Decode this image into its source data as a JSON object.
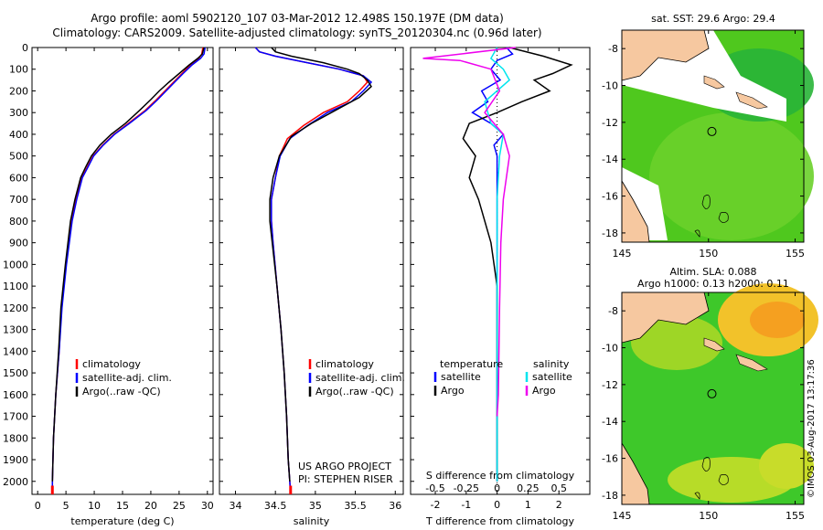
{
  "header": {
    "line1": "Argo profile: aoml 5902120_107 03-Mar-2012 12.498S 150.197E (DM data)",
    "line2": "Climatology: CARS2009. Satellite-adjusted climatology: synTS_20120304.nc (0.96d later)"
  },
  "chart_data": [
    {
      "type": "line",
      "id": "temperature",
      "xlabel": "temperature (deg C)",
      "xlim": [
        -1,
        31
      ],
      "ylim": [
        2060,
        0
      ],
      "xticks": [
        0,
        5,
        10,
        15,
        20,
        25,
        30
      ],
      "yticks": [
        0,
        100,
        200,
        300,
        400,
        500,
        600,
        700,
        800,
        900,
        1000,
        1100,
        1200,
        1300,
        1400,
        1500,
        1600,
        1700,
        1800,
        1900,
        2000
      ],
      "legend": [
        "climatology",
        "satellite-adj. clim.",
        "Argo(..raw -QC)"
      ],
      "series": [
        {
          "name": "climatology",
          "color": "#ff0000",
          "x": [
            29.2,
            29,
            28.5,
            27,
            25.5,
            24,
            22.5,
            21,
            19,
            16,
            13.5,
            11.5,
            9.8,
            8.8,
            7.8,
            6.8,
            6,
            5,
            4.2,
            3.8,
            3.2,
            2.8,
            2.6,
            2.6
          ],
          "y": [
            0,
            30,
            50,
            80,
            120,
            160,
            200,
            240,
            290,
            350,
            400,
            450,
            500,
            550,
            600,
            700,
            800,
            1000,
            1200,
            1400,
            1600,
            1800,
            2000,
            2060
          ]
        },
        {
          "name": "satellite-adj. clim.",
          "color": "#0000ff",
          "x": [
            29.6,
            29.4,
            28.8,
            27.3,
            25.7,
            24.2,
            22.7,
            21.2,
            19.2,
            16.2,
            13.6,
            11.6,
            9.9,
            8.9,
            7.9,
            6.9,
            6.1,
            5.1,
            4.3,
            3.8,
            3.2,
            2.8,
            2.6,
            2.6
          ],
          "y": [
            0,
            30,
            50,
            80,
            120,
            160,
            200,
            240,
            290,
            350,
            400,
            450,
            500,
            550,
            600,
            700,
            800,
            1000,
            1200,
            1400,
            1600,
            1800,
            2000,
            2060
          ]
        },
        {
          "name": "Argo(..raw -QC)",
          "color": "#000000",
          "x": [
            29.4,
            29.1,
            28.3,
            26.8,
            25,
            23.2,
            21.5,
            20,
            18,
            15.5,
            13,
            11,
            9.5,
            8.5,
            7.6,
            6.6,
            5.8,
            4.9,
            4.1,
            3.7,
            3.2,
            2.8,
            2.6
          ],
          "y": [
            0,
            30,
            50,
            80,
            120,
            160,
            200,
            240,
            290,
            350,
            400,
            450,
            500,
            550,
            600,
            700,
            800,
            1000,
            1200,
            1400,
            1600,
            1800,
            2000
          ]
        }
      ]
    },
    {
      "type": "line",
      "id": "salinity",
      "xlabel": "salinity",
      "xlim": [
        33.8,
        36.1
      ],
      "ylim": [
        2060,
        0
      ],
      "xticks": [
        34,
        34.5,
        35,
        35.5,
        36
      ],
      "legend": [
        "climatology",
        "satellite-adj. clim.",
        "Argo(..raw -QC)"
      ],
      "annotation": [
        "US ARGO PROJECT",
        "PI: STEPHEN RISER"
      ],
      "series": [
        {
          "name": "climatology",
          "color": "#ff0000",
          "x": [
            34.25,
            34.3,
            34.5,
            34.9,
            35.3,
            35.6,
            35.65,
            35.55,
            35.4,
            35.1,
            34.85,
            34.65,
            34.55,
            34.5,
            34.45,
            34.45,
            34.47,
            34.52,
            34.57,
            34.61,
            34.64,
            34.66,
            34.68,
            34.69
          ],
          "y": [
            0,
            20,
            40,
            70,
            100,
            130,
            160,
            200,
            250,
            300,
            360,
            420,
            500,
            600,
            700,
            800,
            900,
            1100,
            1300,
            1500,
            1700,
            1900,
            2000,
            2060
          ]
        },
        {
          "name": "satellite-adj. clim.",
          "color": "#0000ff",
          "x": [
            34.25,
            34.3,
            34.5,
            34.9,
            35.3,
            35.6,
            35.7,
            35.6,
            35.45,
            35.15,
            34.9,
            34.68,
            34.56,
            34.5,
            34.45,
            34.45,
            34.47,
            34.52,
            34.57,
            34.61,
            34.64,
            34.66,
            34.68,
            34.69
          ],
          "y": [
            0,
            20,
            40,
            70,
            100,
            130,
            160,
            200,
            250,
            300,
            360,
            420,
            500,
            600,
            700,
            800,
            900,
            1100,
            1300,
            1500,
            1700,
            1900,
            2000,
            2060
          ]
        },
        {
          "name": "Argo(..raw -QC)",
          "color": "#000000",
          "x": [
            34.45,
            34.5,
            34.7,
            35.1,
            35.4,
            35.55,
            35.65,
            35.7,
            35.55,
            35.25,
            34.95,
            34.7,
            34.55,
            34.47,
            34.43,
            34.43,
            34.46,
            34.52,
            34.57,
            34.61,
            34.64,
            34.66,
            34.68
          ],
          "y": [
            0,
            20,
            40,
            70,
            100,
            120,
            150,
            180,
            230,
            290,
            350,
            410,
            500,
            600,
            700,
            800,
            900,
            1100,
            1300,
            1500,
            1700,
            1900,
            2000
          ]
        }
      ]
    },
    {
      "type": "line",
      "id": "differences",
      "xlabel": "T difference from climatology",
      "xlabel_top": "S difference from climatology",
      "xlim_T": [
        -2.8,
        3.0
      ],
      "xlim_S": [
        -0.7,
        0.75
      ],
      "ylim": [
        2060,
        0
      ],
      "xticks_T": [
        -2,
        -1,
        0,
        1,
        2
      ],
      "xticks_S": [
        -0.5,
        -0.25,
        0,
        0.25,
        0.5
      ],
      "xticklabels_S": [
        "-0.5",
        "-0.25",
        "0",
        "0.25",
        "0.5"
      ],
      "legend_T": {
        "title": "temperature",
        "entries": [
          "satellite",
          "Argo"
        ]
      },
      "legend_S": {
        "title": "salinity",
        "entries": [
          "satellite",
          "Argo"
        ]
      },
      "series": [
        {
          "name": "T satellite",
          "axis": "T",
          "color": "#0000ff",
          "x": [
            0.3,
            0.5,
            0,
            -0.2,
            0.1,
            -0.5,
            -0.3,
            -0.8,
            -0.2,
            0.2,
            -0.1,
            0,
            0,
            0,
            0,
            0,
            0
          ],
          "y": [
            0,
            30,
            60,
            100,
            150,
            200,
            250,
            300,
            350,
            400,
            450,
            500,
            600,
            800,
            1100,
            1500,
            2000
          ]
        },
        {
          "name": "T Argo",
          "axis": "T",
          "color": "#000000",
          "x": [
            0.4,
            1.5,
            2.4,
            1.8,
            1.2,
            1.7,
            0.8,
            0,
            -0.9,
            -1.1,
            -0.7,
            -0.9,
            -0.6,
            -0.2,
            0,
            0,
            0
          ],
          "y": [
            0,
            40,
            80,
            120,
            150,
            200,
            250,
            300,
            350,
            420,
            500,
            600,
            700,
            900,
            1100,
            1500,
            2000
          ]
        },
        {
          "name": "S satellite",
          "axis": "S",
          "color": "#00e5ee",
          "x": [
            0,
            -0.05,
            0.05,
            0.1,
            -0.1,
            -0.05,
            0.05,
            0.02,
            0,
            0,
            0,
            0
          ],
          "y": [
            0,
            50,
            100,
            150,
            250,
            350,
            400,
            500,
            700,
            1000,
            1500,
            2000
          ]
        },
        {
          "name": "S Argo",
          "axis": "S",
          "color": "#ee00ee",
          "x": [
            0.15,
            -0.6,
            -0.3,
            -0.05,
            0.02,
            -0.1,
            0.05,
            0.1,
            0.05,
            0.03,
            0.02,
            0.01,
            0
          ],
          "y": [
            0,
            50,
            60,
            100,
            200,
            300,
            400,
            500,
            700,
            900,
            1200,
            1600,
            1700
          ]
        }
      ]
    },
    {
      "type": "heatmap",
      "id": "sst_map",
      "title": "sat. SST: 29.6 Argo: 29.4",
      "xlim": [
        145,
        155.5
      ],
      "ylim": [
        -18.5,
        -7
      ],
      "xticks": [
        145,
        150,
        155
      ],
      "yticks": [
        -8,
        -10,
        -12,
        -14,
        -16,
        -18
      ],
      "argo_position": {
        "lon": 150.197,
        "lat": -12.498
      }
    },
    {
      "type": "heatmap",
      "id": "sla_map",
      "title": "Altim. SLA: 0.088",
      "subtitle": "Argo h1000: 0.13 h2000: 0.11",
      "xlim": [
        145,
        155.5
      ],
      "ylim": [
        -18.5,
        -7
      ],
      "xticks": [
        145,
        150,
        155
      ],
      "yticks": [
        -8,
        -10,
        -12,
        -14,
        -16,
        -18
      ],
      "argo_position": {
        "lon": 150.197,
        "lat": -12.498
      }
    }
  ],
  "stamp": "©IMOS 03-Aug-2017 13:17:36"
}
